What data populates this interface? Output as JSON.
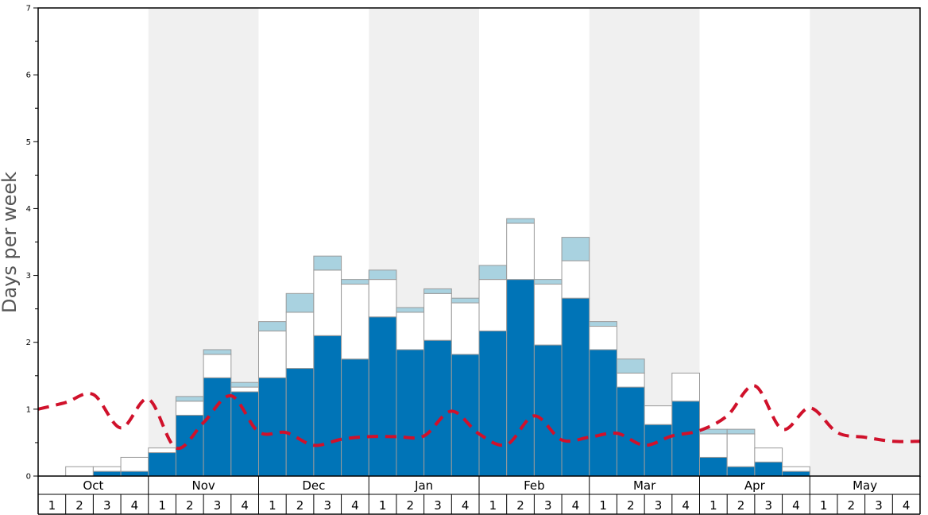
{
  "chart_data": {
    "type": "bar",
    "stacked": true,
    "ylabel": "Days per week",
    "ylim": [
      0,
      7
    ],
    "y_ticks": [
      "0",
      "1",
      "2",
      "3",
      "4",
      "5",
      "6",
      "7"
    ],
    "months": [
      "Oct",
      "Nov",
      "Dec",
      "Jan",
      "Feb",
      "Mar",
      "Apr",
      "May"
    ],
    "week_labels": [
      "1",
      "2",
      "3",
      "4"
    ],
    "shaded_months": [
      "Nov",
      "Jan",
      "Mar",
      "May"
    ],
    "colors": {
      "series_1": "#0074b7",
      "series_2": "#ffffff",
      "series_3": "#a9d2e0",
      "dashed_line": "#d0112b",
      "shade": "#f0f0f0"
    },
    "series": [
      {
        "values": [
          0,
          0,
          0.07,
          0.07,
          0.35,
          0.91,
          1.47,
          1.26,
          1.47,
          1.61,
          2.1,
          1.75,
          2.38,
          1.89,
          2.03,
          1.82,
          2.17,
          2.94,
          1.96,
          2.66,
          1.89,
          1.33,
          0.77,
          1.12,
          0.28,
          0.14,
          0.21,
          0.07,
          0,
          0,
          0,
          0
        ]
      },
      {
        "values": [
          0,
          0.14,
          0.07,
          0.21,
          0.07,
          0.21,
          0.35,
          0.07,
          0.7,
          0.84,
          0.98,
          1.12,
          0.56,
          0.56,
          0.7,
          0.77,
          0.77,
          0.84,
          0.91,
          0.56,
          0.35,
          0.21,
          0.28,
          0.42,
          0.35,
          0.49,
          0.21,
          0.07,
          0,
          0,
          0,
          0
        ]
      },
      {
        "values": [
          0,
          0,
          0,
          0,
          0,
          0.07,
          0.07,
          0.07,
          0.14,
          0.28,
          0.21,
          0.07,
          0.14,
          0.07,
          0.07,
          0.07,
          0.21,
          0.07,
          0.07,
          0.35,
          0.07,
          0.21,
          0,
          0,
          0.07,
          0.07,
          0,
          0,
          0,
          0,
          0,
          0
        ]
      }
    ],
    "line": {
      "style": "dashed",
      "values": [
        1.0,
        1.1,
        1.22,
        0.72,
        1.15,
        0.42,
        0.8,
        1.2,
        0.66,
        0.65,
        0.46,
        0.55,
        0.59,
        0.59,
        0.6,
        0.97,
        0.63,
        0.47,
        0.9,
        0.54,
        0.58,
        0.64,
        0.46,
        0.6,
        0.68,
        0.9,
        1.35,
        0.7,
        1.02,
        0.65,
        0.58,
        0.52,
        0.52
      ]
    },
    "grid": false,
    "legend": "none"
  }
}
